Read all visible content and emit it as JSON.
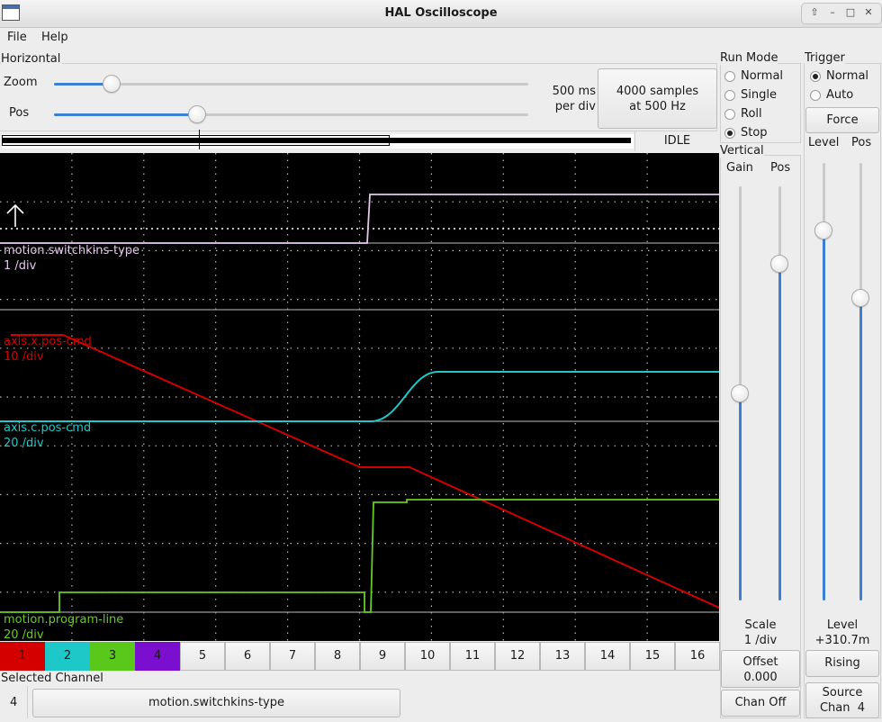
{
  "window": {
    "title": "HAL Oscilloscope"
  },
  "menu": {
    "file": "File",
    "help": "Help"
  },
  "horizontal": {
    "group_label": "Horizontal",
    "zoom_label": "Zoom",
    "pos_label": "Pos",
    "zoom_level": 0.12,
    "pos_level": 0.3,
    "rate_line1": "500 ms",
    "rate_line2": "per div",
    "samples_line1": "4000 samples",
    "samples_line2": "at 500 Hz",
    "status": "IDLE"
  },
  "run_mode": {
    "label": "Run Mode",
    "options": [
      "Normal",
      "Single",
      "Roll",
      "Stop"
    ],
    "selected": "Stop"
  },
  "trigger": {
    "label": "Trigger",
    "options": [
      "Normal",
      "Auto"
    ],
    "selected": "Normal",
    "force_label": "Force",
    "level_label": "Level",
    "pos_label": "Pos",
    "level_title": "Level",
    "level_value": "+310.7m",
    "edge_button": "Rising",
    "source_line1": "Source",
    "source_line2": "Chan  4"
  },
  "vertical": {
    "label": "Vertical",
    "gain_label": "Gain",
    "pos_label": "Pos",
    "scale_title": "Scale",
    "scale_value": "1 /div",
    "offset_line1": "Offset",
    "offset_line2": "0.000",
    "chan_off_button": "Chan Off"
  },
  "traces": [
    {
      "name": "motion.switchkins-type",
      "scale": "1 /div",
      "color": "#e6c8ee"
    },
    {
      "name": "axis.x.pos-cmd",
      "scale": "10 /div",
      "color": "#d00000"
    },
    {
      "name": "axis.c.pos-cmd",
      "scale": "20 /div",
      "color": "#20c8c8"
    },
    {
      "name": "motion.program-line",
      "scale": "20 /div",
      "color": "#66cc22"
    }
  ],
  "channels": {
    "labels": [
      "1",
      "2",
      "3",
      "4",
      "5",
      "6",
      "7",
      "8",
      "9",
      "10",
      "11",
      "12",
      "13",
      "14",
      "15",
      "16"
    ],
    "colors": {
      "1": "#d40000",
      "2": "#1fc8c8",
      "3": "#5ac81a",
      "4": "#7a0fd0"
    }
  },
  "selected_channel": {
    "label": "Selected Channel",
    "number": "4",
    "signal": "motion.switchkins-type"
  },
  "icons": {
    "window": "app-window-icon",
    "trigger_marker": "up-arrow-icon"
  }
}
